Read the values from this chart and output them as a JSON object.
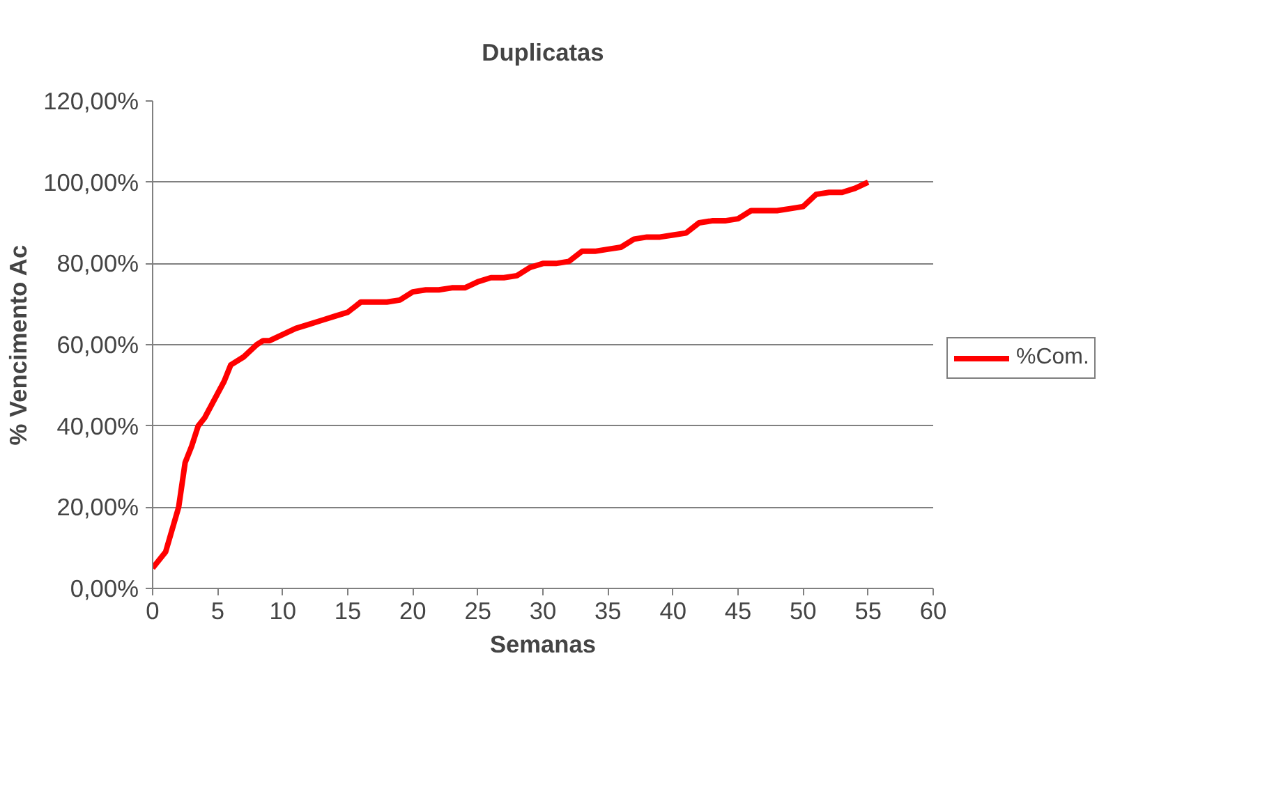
{
  "chart_data": {
    "type": "line",
    "title": "Duplicatas",
    "xlabel": "Semanas",
    "ylabel": "% Vencimento Ac",
    "x": [
      0,
      1,
      2,
      2.5,
      3,
      3.5,
      4,
      5,
      5.5,
      6,
      7,
      8,
      8.5,
      9,
      10,
      11,
      12,
      13,
      14,
      15,
      16,
      17,
      18,
      19,
      20,
      21,
      22,
      23,
      24,
      25,
      26,
      27,
      28,
      29,
      30,
      31,
      32,
      33,
      34,
      35,
      36,
      37,
      38,
      39,
      40,
      41,
      42,
      43,
      44,
      45,
      46,
      47,
      48,
      49,
      50,
      51,
      52,
      53,
      54,
      55
    ],
    "series": [
      {
        "name": "%Com.",
        "color": "#ff0000",
        "values": [
          5,
          9,
          20,
          31,
          35,
          40,
          42,
          48,
          51,
          55,
          57,
          60,
          61,
          61,
          62.5,
          64,
          65,
          66,
          67,
          68,
          70.5,
          70.5,
          70.5,
          71,
          73,
          73.5,
          73.5,
          74,
          74,
          75.5,
          76.5,
          76.5,
          77,
          79,
          80,
          80,
          80.5,
          83,
          83,
          83.5,
          84,
          86,
          86.5,
          86.5,
          87,
          87.5,
          90,
          90.5,
          90.5,
          91,
          93,
          93,
          93,
          93.5,
          94,
          97,
          97.5,
          97.5,
          98.5,
          100
        ]
      }
    ],
    "xlim": [
      0,
      60
    ],
    "xticks": [
      0,
      5,
      10,
      15,
      20,
      25,
      30,
      35,
      40,
      45,
      50,
      55,
      60
    ],
    "ylim": [
      0,
      120
    ],
    "yticks": [
      {
        "value": 0,
        "label": "0,00%"
      },
      {
        "value": 20,
        "label": "20,00%"
      },
      {
        "value": 40,
        "label": "40,00%"
      },
      {
        "value": 60,
        "label": "60,00%"
      },
      {
        "value": 80,
        "label": "80,00%"
      },
      {
        "value": 100,
        "label": "100,00%"
      },
      {
        "value": 120,
        "label": "120,00%"
      }
    ],
    "grid": "y",
    "legend": "right",
    "marker": "none",
    "line_style": "solid"
  }
}
